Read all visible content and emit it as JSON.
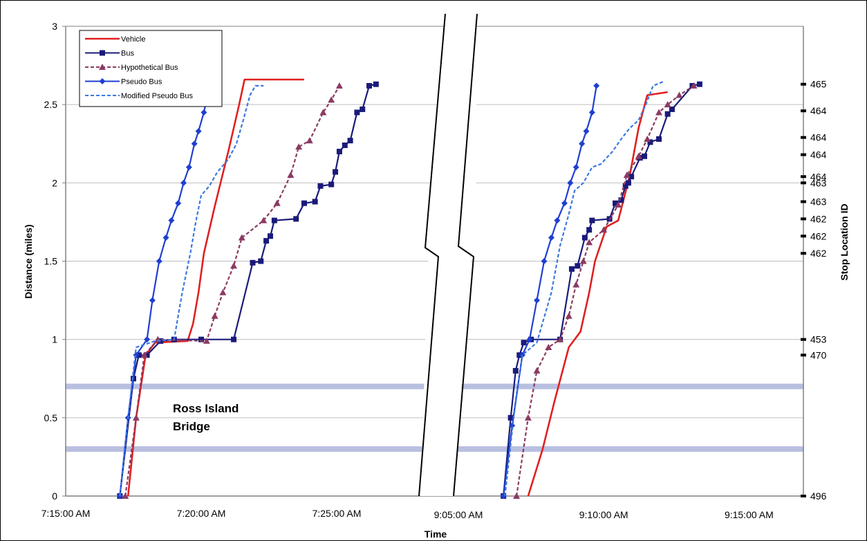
{
  "chart_data": {
    "type": "line",
    "xlabel": "Time",
    "ylabel": "Distance (miles)",
    "y2label": "Stop Location ID",
    "ylim": [
      0,
      3
    ],
    "y_ticks": [
      "0",
      "0.5",
      "1",
      "1.5",
      "2",
      "2.5",
      "3"
    ],
    "left_panel": {
      "xlim_minutes": [
        0,
        12
      ],
      "x_ticks": [
        {
          "label": "7:15:00 AM",
          "min": 0
        },
        {
          "label": "7:20:00 AM",
          "min": 5
        },
        {
          "label": "7:25:00 AM",
          "min": 10
        }
      ]
    },
    "right_panel": {
      "xlim_minutes": [
        0,
        12
      ],
      "x_ticks": [
        {
          "label": "9:05:00 AM",
          "min": 0
        },
        {
          "label": "9:10:00 AM",
          "min": 5
        },
        {
          "label": "9:15:00 AM",
          "min": 10
        }
      ]
    },
    "stop_ids": [
      {
        "label": "465",
        "y": 2.63
      },
      {
        "label": "464",
        "y": 2.46
      },
      {
        "label": "464",
        "y": 2.29
      },
      {
        "label": "464",
        "y": 2.18
      },
      {
        "label": "464",
        "y": 2.04
      },
      {
        "label": "463",
        "y": 2.0
      },
      {
        "label": "463",
        "y": 1.88
      },
      {
        "label": "462",
        "y": 1.77
      },
      {
        "label": "462",
        "y": 1.66
      },
      {
        "label": "462",
        "y": 1.55
      },
      {
        "label": "453",
        "y": 1.0
      },
      {
        "label": "470",
        "y": 0.9
      },
      {
        "label": "496",
        "y": 0.0
      }
    ],
    "bridge_band": {
      "label_line1": "Ross Island",
      "label_line2": "Bridge",
      "y_low": 0.3,
      "y_high": 0.7
    },
    "legend": [
      "Vehicle",
      "Bus",
      "Hypothetical Bus",
      "Pseudo Bus",
      "Modified Pseudo Bus"
    ],
    "series": [
      {
        "name": "Vehicle",
        "color": "#e02020",
        "style": "solid",
        "marker": "none",
        "left": [
          [
            2.3,
            0
          ],
          [
            2.6,
            0.5
          ],
          [
            2.95,
            0.9
          ],
          [
            3.3,
            0.98
          ],
          [
            4.5,
            0.99
          ],
          [
            4.7,
            1.1
          ],
          [
            4.9,
            1.3
          ],
          [
            5.1,
            1.55
          ],
          [
            5.5,
            1.85
          ],
          [
            6.0,
            2.2
          ],
          [
            6.4,
            2.5
          ],
          [
            6.6,
            2.66
          ],
          [
            8.8,
            2.66
          ]
        ],
        "right": [
          [
            2.4,
            0
          ],
          [
            2.9,
            0.3
          ],
          [
            3.3,
            0.6
          ],
          [
            3.8,
            0.95
          ],
          [
            4.2,
            1.05
          ],
          [
            4.5,
            1.3
          ],
          [
            4.7,
            1.5
          ],
          [
            5.1,
            1.72
          ],
          [
            5.5,
            1.76
          ],
          [
            5.9,
            2.05
          ],
          [
            6.2,
            2.35
          ],
          [
            6.5,
            2.56
          ],
          [
            7.2,
            2.58
          ]
        ]
      },
      {
        "name": "Bus",
        "color": "#1a1a7a",
        "style": "solid",
        "marker": "square",
        "left": [
          [
            2.0,
            0
          ],
          [
            2.5,
            0.75
          ],
          [
            2.7,
            0.9
          ],
          [
            3.0,
            0.9
          ],
          [
            3.5,
            0.99
          ],
          [
            4.0,
            1.0
          ],
          [
            5.0,
            1.0
          ],
          [
            6.2,
            1.0
          ],
          [
            6.9,
            1.49
          ],
          [
            7.2,
            1.5
          ],
          [
            7.4,
            1.63
          ],
          [
            7.55,
            1.66
          ],
          [
            7.7,
            1.76
          ],
          [
            8.5,
            1.77
          ],
          [
            8.8,
            1.87
          ],
          [
            9.2,
            1.88
          ],
          [
            9.4,
            1.98
          ],
          [
            9.8,
            1.99
          ],
          [
            9.95,
            2.07
          ],
          [
            10.1,
            2.2
          ],
          [
            10.3,
            2.24
          ],
          [
            10.5,
            2.27
          ],
          [
            10.75,
            2.45
          ],
          [
            10.95,
            2.47
          ],
          [
            11.2,
            2.62
          ],
          [
            11.45,
            2.63
          ]
        ],
        "right": [
          [
            1.55,
            0
          ],
          [
            1.8,
            0.5
          ],
          [
            1.97,
            0.8
          ],
          [
            2.1,
            0.9
          ],
          [
            2.25,
            0.98
          ],
          [
            2.5,
            1.0
          ],
          [
            3.5,
            1.0
          ],
          [
            3.9,
            1.45
          ],
          [
            4.1,
            1.47
          ],
          [
            4.35,
            1.65
          ],
          [
            4.5,
            1.7
          ],
          [
            4.6,
            1.76
          ],
          [
            5.2,
            1.77
          ],
          [
            5.4,
            1.87
          ],
          [
            5.6,
            1.89
          ],
          [
            5.75,
            1.98
          ],
          [
            5.85,
            2.0
          ],
          [
            5.95,
            2.04
          ],
          [
            6.25,
            2.16
          ],
          [
            6.4,
            2.17
          ],
          [
            6.6,
            2.26
          ],
          [
            6.9,
            2.28
          ],
          [
            7.2,
            2.44
          ],
          [
            7.35,
            2.47
          ],
          [
            8.05,
            2.62
          ],
          [
            8.3,
            2.63
          ]
        ]
      },
      {
        "name": "Hypothetical Bus",
        "color": "#8b3a62",
        "style": "dashed",
        "marker": "triangle",
        "left": [
          [
            2.2,
            0
          ],
          [
            2.6,
            0.5
          ],
          [
            2.9,
            0.9
          ],
          [
            3.4,
            1.0
          ],
          [
            5.2,
            0.99
          ],
          [
            5.5,
            1.15
          ],
          [
            5.8,
            1.3
          ],
          [
            6.2,
            1.47
          ],
          [
            6.5,
            1.65
          ],
          [
            7.3,
            1.76
          ],
          [
            7.8,
            1.87
          ],
          [
            8.3,
            2.05
          ],
          [
            8.6,
            2.23
          ],
          [
            9.0,
            2.27
          ],
          [
            9.5,
            2.45
          ],
          [
            9.8,
            2.53
          ],
          [
            10.1,
            2.62
          ]
        ],
        "right": [
          [
            2.0,
            0
          ],
          [
            2.4,
            0.5
          ],
          [
            2.7,
            0.8
          ],
          [
            3.1,
            0.95
          ],
          [
            3.5,
            1.0
          ],
          [
            3.8,
            1.15
          ],
          [
            4.05,
            1.35
          ],
          [
            4.3,
            1.5
          ],
          [
            4.5,
            1.62
          ],
          [
            5.0,
            1.7
          ],
          [
            5.5,
            1.86
          ],
          [
            5.8,
            2.05
          ],
          [
            6.2,
            2.17
          ],
          [
            6.5,
            2.28
          ],
          [
            6.9,
            2.45
          ],
          [
            7.2,
            2.5
          ],
          [
            7.6,
            2.56
          ],
          [
            8.1,
            2.62
          ]
        ]
      },
      {
        "name": "Pseudo Bus",
        "color": "#1f3fd1",
        "style": "solid",
        "marker": "diamond",
        "left": [
          [
            2.0,
            0
          ],
          [
            2.3,
            0.5
          ],
          [
            2.6,
            0.9
          ],
          [
            3.0,
            1.0
          ],
          [
            3.2,
            1.25
          ],
          [
            3.45,
            1.5
          ],
          [
            3.7,
            1.65
          ],
          [
            3.9,
            1.76
          ],
          [
            4.15,
            1.87
          ],
          [
            4.35,
            2.0
          ],
          [
            4.55,
            2.1
          ],
          [
            4.75,
            2.25
          ],
          [
            4.9,
            2.33
          ],
          [
            5.1,
            2.45
          ],
          [
            5.3,
            2.62
          ]
        ],
        "right": [
          [
            1.55,
            0
          ],
          [
            1.85,
            0.45
          ],
          [
            2.2,
            0.9
          ],
          [
            2.45,
            1.0
          ],
          [
            2.7,
            1.25
          ],
          [
            2.95,
            1.5
          ],
          [
            3.2,
            1.65
          ],
          [
            3.4,
            1.76
          ],
          [
            3.65,
            1.87
          ],
          [
            3.85,
            2.0
          ],
          [
            4.05,
            2.1
          ],
          [
            4.25,
            2.25
          ],
          [
            4.4,
            2.33
          ],
          [
            4.6,
            2.45
          ],
          [
            4.75,
            2.62
          ]
        ]
      },
      {
        "name": "Modified Pseudo Bus",
        "color": "#3a78e0",
        "style": "dashed",
        "marker": "none",
        "left": [
          [
            2.0,
            0
          ],
          [
            2.3,
            0.5
          ],
          [
            2.6,
            0.95
          ],
          [
            3.3,
            0.99
          ],
          [
            4.0,
            1.0
          ],
          [
            4.3,
            1.3
          ],
          [
            4.6,
            1.55
          ],
          [
            4.8,
            1.75
          ],
          [
            5.0,
            1.92
          ],
          [
            5.3,
            1.98
          ],
          [
            5.6,
            2.07
          ],
          [
            6.0,
            2.15
          ],
          [
            6.3,
            2.25
          ],
          [
            6.55,
            2.4
          ],
          [
            6.8,
            2.56
          ],
          [
            7.0,
            2.62
          ],
          [
            7.3,
            2.62
          ]
        ],
        "right": [
          [
            1.6,
            0
          ],
          [
            1.9,
            0.5
          ],
          [
            2.2,
            0.9
          ],
          [
            2.7,
            0.98
          ],
          [
            3.2,
            1.3
          ],
          [
            3.5,
            1.6
          ],
          [
            3.8,
            1.8
          ],
          [
            4.0,
            1.95
          ],
          [
            4.3,
            2.0
          ],
          [
            4.6,
            2.1
          ],
          [
            4.9,
            2.12
          ],
          [
            5.3,
            2.2
          ],
          [
            5.6,
            2.28
          ],
          [
            5.9,
            2.35
          ],
          [
            6.2,
            2.4
          ],
          [
            6.45,
            2.5
          ],
          [
            6.7,
            2.62
          ],
          [
            7.1,
            2.65
          ]
        ]
      }
    ]
  }
}
